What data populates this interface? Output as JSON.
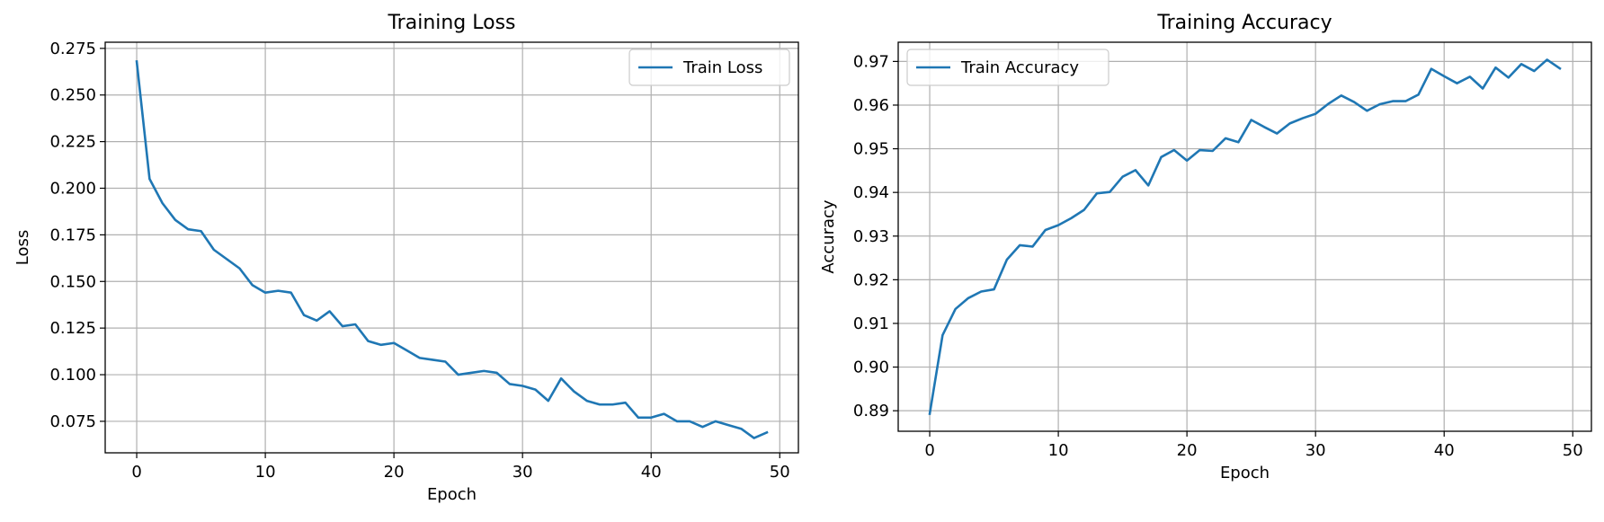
{
  "chart_data": [
    {
      "type": "line",
      "title": "Training Loss",
      "xlabel": "Epoch",
      "ylabel": "Loss",
      "xlim": [
        -2.45,
        51.45
      ],
      "ylim": [
        0.0581,
        0.2783
      ],
      "xticks": [
        0,
        10,
        20,
        30,
        40,
        50
      ],
      "xtick_labels": [
        "0",
        "10",
        "20",
        "30",
        "40",
        "50"
      ],
      "yticks": [
        0.075,
        0.1,
        0.125,
        0.15,
        0.175,
        0.2,
        0.225,
        0.25,
        0.275
      ],
      "ytick_labels": [
        "0.075",
        "0.100",
        "0.125",
        "0.150",
        "0.175",
        "0.200",
        "0.225",
        "0.250",
        "0.275"
      ],
      "grid": true,
      "legend_position": "top-right",
      "color": "#1f77b4",
      "series": [
        {
          "name": "Train Loss",
          "x": [
            0,
            1,
            2,
            3,
            4,
            5,
            6,
            7,
            8,
            9,
            10,
            11,
            12,
            13,
            14,
            15,
            16,
            17,
            18,
            19,
            20,
            21,
            22,
            23,
            24,
            25,
            26,
            27,
            28,
            29,
            30,
            31,
            32,
            33,
            34,
            35,
            36,
            37,
            38,
            39,
            40,
            41,
            42,
            43,
            44,
            45,
            46,
            47,
            48,
            49
          ],
          "values": [
            0.268,
            0.205,
            0.192,
            0.183,
            0.178,
            0.177,
            0.167,
            0.162,
            0.157,
            0.148,
            0.144,
            0.145,
            0.144,
            0.132,
            0.129,
            0.134,
            0.126,
            0.127,
            0.118,
            0.116,
            0.117,
            0.113,
            0.109,
            0.108,
            0.107,
            0.1,
            0.101,
            0.102,
            0.101,
            0.095,
            0.094,
            0.092,
            0.086,
            0.098,
            0.091,
            0.086,
            0.084,
            0.084,
            0.085,
            0.077,
            0.077,
            0.079,
            0.075,
            0.075,
            0.072,
            0.075,
            0.073,
            0.071,
            0.066,
            0.069
          ]
        }
      ]
    },
    {
      "type": "line",
      "title": "Training Accuracy",
      "xlabel": "Epoch",
      "ylabel": "Accuracy",
      "xlim": [
        -2.45,
        51.45
      ],
      "ylim": [
        0.8853,
        0.9744
      ],
      "xticks": [
        0,
        10,
        20,
        30,
        40,
        50
      ],
      "xtick_labels": [
        "0",
        "10",
        "20",
        "30",
        "40",
        "50"
      ],
      "yticks": [
        0.89,
        0.9,
        0.91,
        0.92,
        0.93,
        0.94,
        0.95,
        0.96,
        0.97
      ],
      "ytick_labels": [
        "0.89",
        "0.90",
        "0.91",
        "0.92",
        "0.93",
        "0.94",
        "0.95",
        "0.96",
        "0.97"
      ],
      "grid": true,
      "legend_position": "top-left",
      "color": "#1f77b4",
      "series": [
        {
          "name": "Train Accuracy",
          "x": [
            0,
            1,
            2,
            3,
            4,
            5,
            6,
            7,
            8,
            9,
            10,
            11,
            12,
            13,
            14,
            15,
            16,
            17,
            18,
            19,
            20,
            21,
            22,
            23,
            24,
            25,
            26,
            27,
            28,
            29,
            30,
            31,
            32,
            33,
            34,
            35,
            36,
            37,
            38,
            39,
            40,
            41,
            42,
            43,
            44,
            45,
            46,
            47,
            48,
            49
          ],
          "values": [
            0.8893,
            0.9073,
            0.9133,
            0.9158,
            0.9173,
            0.9178,
            0.9246,
            0.9279,
            0.9276,
            0.9314,
            0.9325,
            0.9341,
            0.936,
            0.9398,
            0.9401,
            0.9436,
            0.9451,
            0.9416,
            0.9481,
            0.9497,
            0.9473,
            0.9497,
            0.9495,
            0.9524,
            0.9515,
            0.9566,
            0.955,
            0.9535,
            0.9558,
            0.957,
            0.958,
            0.9603,
            0.9622,
            0.9607,
            0.9587,
            0.9602,
            0.9609,
            0.9609,
            0.9624,
            0.9683,
            0.9666,
            0.965,
            0.9665,
            0.9638,
            0.9686,
            0.9663,
            0.9694,
            0.9678,
            0.9704,
            0.9684
          ]
        }
      ]
    }
  ]
}
